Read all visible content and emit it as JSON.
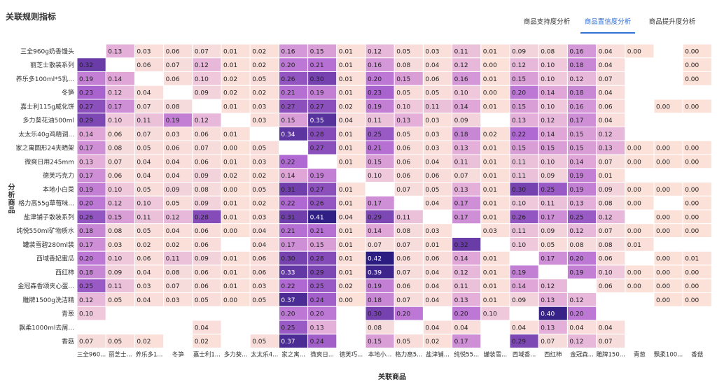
{
  "page": {
    "title": "关联规则指标"
  },
  "tabs": [
    {
      "label": "商品支持度分析",
      "active": false
    },
    {
      "label": "商品置信度分析",
      "active": true
    },
    {
      "label": "商品提升度分析",
      "active": false
    }
  ],
  "chart_data": {
    "type": "heatmap",
    "xlabel": "关联商品",
    "ylabel": "分析商品",
    "row_labels": [
      "三全960g奶香馒头",
      "丽芝士散装系列",
      "养乐多100ml*5乳...",
      "冬笋",
      "嘉士利115g威化饼",
      "多力葵花油500ml",
      "太太乐40g鸡精调...",
      "家之寓圆形24夹晒架",
      "微爽日用245mm",
      "德芙巧克力",
      "本地小白菜",
      "格力高55g草莓味...",
      "盐津铺子散装系列",
      "纯悦550ml矿物质水",
      "罐装雪碧280ml装",
      "西域香妃蜜瓜",
      "西红柿",
      "金冠森香颂夹心蛋...",
      "雕牌1500g洗洁精",
      "青葱",
      "飘柔1000ml去屑...",
      "香菇"
    ],
    "col_labels": [
      "三全960...",
      "丽芝士...",
      "养乐多1...",
      "冬笋",
      "嘉士利1...",
      "多力葵...",
      "太太乐4...",
      "家之寓...",
      "微爽日...",
      "德芙巧...",
      "本地小...",
      "格力高5...",
      "盐津铺...",
      "纯悦55...",
      "罐装雪...",
      "西域香...",
      "西红柿",
      "金冠森...",
      "雕牌150...",
      "青葱",
      "飘柔100...",
      "香菇"
    ],
    "values": [
      [
        "",
        "0.13",
        "0.03",
        "0.06",
        "0.07",
        "0.01",
        "0.02",
        "0.16",
        "0.15",
        "0.01",
        "0.12",
        "0.05",
        "0.03",
        "0.11",
        "0.01",
        "0.09",
        "0.08",
        "0.16",
        "0.04",
        "0.00",
        "",
        "0.00"
      ],
      [
        "0.32",
        "",
        "0.06",
        "0.07",
        "0.12",
        "0.01",
        "0.02",
        "0.20",
        "0.21",
        "0.01",
        "0.16",
        "0.08",
        "0.04",
        "0.12",
        "0.00",
        "0.12",
        "0.10",
        "0.18",
        "0.04",
        "",
        "",
        "0.00"
      ],
      [
        "0.19",
        "0.14",
        "",
        "0.06",
        "0.10",
        "0.02",
        "0.05",
        "0.26",
        "0.30",
        "0.01",
        "0.20",
        "0.15",
        "0.06",
        "0.16",
        "0.01",
        "0.15",
        "0.10",
        "0.12",
        "0.07",
        "",
        "",
        "0.00"
      ],
      [
        "0.23",
        "0.12",
        "0.04",
        "",
        "0.09",
        "0.02",
        "0.02",
        "0.21",
        "0.19",
        "0.01",
        "0.23",
        "0.05",
        "0.05",
        "0.10",
        "0.00",
        "0.20",
        "0.14",
        "0.18",
        "0.04",
        "",
        "",
        ""
      ],
      [
        "0.27",
        "0.17",
        "0.07",
        "0.08",
        "",
        "0.01",
        "0.03",
        "0.27",
        "0.27",
        "0.02",
        "0.19",
        "0.10",
        "0.11",
        "0.14",
        "0.01",
        "0.15",
        "0.10",
        "0.16",
        "0.06",
        "",
        "0.00",
        "0.00"
      ],
      [
        "0.29",
        "0.10",
        "0.11",
        "0.19",
        "0.12",
        "",
        "0.03",
        "0.15",
        "0.35",
        "0.04",
        "0.11",
        "0.13",
        "0.03",
        "0.09",
        "",
        "0.13",
        "0.12",
        "0.17",
        "0.04",
        "",
        "",
        ""
      ],
      [
        "0.14",
        "0.06",
        "0.07",
        "0.03",
        "0.06",
        "0.01",
        "",
        "0.34",
        "0.28",
        "0.01",
        "0.25",
        "0.05",
        "0.03",
        "0.18",
        "0.02",
        "0.22",
        "0.14",
        "0.15",
        "0.12",
        "",
        "",
        ""
      ],
      [
        "0.17",
        "0.08",
        "0.05",
        "0.06",
        "0.07",
        "0.00",
        "0.05",
        "",
        "0.27",
        "0.01",
        "0.21",
        "0.06",
        "0.03",
        "0.13",
        "0.01",
        "0.15",
        "0.15",
        "0.15",
        "0.13",
        "0.00",
        "0.00",
        "0.00"
      ],
      [
        "0.13",
        "0.07",
        "0.04",
        "0.04",
        "0.06",
        "0.01",
        "0.03",
        "0.22",
        "",
        "0.01",
        "0.15",
        "0.06",
        "0.04",
        "0.11",
        "0.01",
        "0.11",
        "0.10",
        "0.14",
        "0.07",
        "0.00",
        "0.00",
        "0.00"
      ],
      [
        "0.17",
        "0.06",
        "0.04",
        "0.04",
        "0.09",
        "0.02",
        "0.02",
        "0.14",
        "0.19",
        "",
        "0.10",
        "0.06",
        "0.06",
        "0.07",
        "0.01",
        "0.11",
        "0.09",
        "0.19",
        "0.01",
        "",
        "",
        ""
      ],
      [
        "0.19",
        "0.10",
        "0.05",
        "0.09",
        "0.08",
        "0.00",
        "0.05",
        "0.31",
        "0.27",
        "0.01",
        "",
        "0.07",
        "0.05",
        "0.13",
        "0.01",
        "0.30",
        "0.25",
        "0.19",
        "0.09",
        "0.00",
        "0.00",
        "0.00"
      ],
      [
        "0.20",
        "0.12",
        "0.10",
        "0.05",
        "0.09",
        "0.01",
        "0.02",
        "0.22",
        "0.26",
        "0.01",
        "0.17",
        "",
        "0.04",
        "0.17",
        "0.01",
        "0.10",
        "0.11",
        "0.13",
        "0.08",
        "0.00",
        "",
        "0.00"
      ],
      [
        "0.26",
        "0.15",
        "0.11",
        "0.12",
        "0.28",
        "0.01",
        "0.03",
        "0.31",
        "0.41",
        "0.04",
        "0.29",
        "0.11",
        "",
        "0.17",
        "0.01",
        "0.26",
        "0.17",
        "0.25",
        "0.12",
        "",
        "0.00",
        "0.00"
      ],
      [
        "0.18",
        "0.08",
        "0.05",
        "0.04",
        "0.06",
        "0.00",
        "0.04",
        "0.21",
        "0.21",
        "0.01",
        "0.14",
        "0.08",
        "0.03",
        "",
        "0.03",
        "0.11",
        "0.09",
        "0.12",
        "0.07",
        "0.00",
        "0.00",
        "0.00"
      ],
      [
        "0.17",
        "0.03",
        "0.02",
        "0.02",
        "0.06",
        "",
        "0.04",
        "0.17",
        "0.15",
        "0.01",
        "0.07",
        "0.07",
        "0.01",
        "0.32",
        "",
        "0.10",
        "0.05",
        "0.08",
        "0.08",
        "0.01",
        "",
        ""
      ],
      [
        "0.20",
        "0.10",
        "0.06",
        "0.11",
        "0.09",
        "0.01",
        "0.06",
        "0.30",
        "0.28",
        "0.01",
        "0.42",
        "0.06",
        "0.06",
        "0.14",
        "0.01",
        "",
        "0.17",
        "0.20",
        "0.06",
        "",
        "0.00",
        "0.01"
      ],
      [
        "0.18",
        "0.09",
        "0.04",
        "0.08",
        "0.06",
        "0.01",
        "0.06",
        "0.33",
        "0.29",
        "0.01",
        "0.39",
        "0.07",
        "0.04",
        "0.12",
        "0.01",
        "0.19",
        "",
        "0.19",
        "0.10",
        "0.00",
        "0.00",
        "0.00"
      ],
      [
        "0.25",
        "0.11",
        "0.03",
        "0.07",
        "0.06",
        "0.01",
        "0.03",
        "0.22",
        "0.25",
        "0.02",
        "0.19",
        "0.06",
        "0.04",
        "0.11",
        "0.01",
        "0.14",
        "0.12",
        "",
        "0.06",
        "0.00",
        "0.00",
        "0.00"
      ],
      [
        "0.12",
        "0.05",
        "0.04",
        "0.03",
        "0.05",
        "0.00",
        "0.05",
        "0.37",
        "0.24",
        "0.00",
        "0.18",
        "0.07",
        "0.04",
        "0.13",
        "0.01",
        "0.09",
        "0.13",
        "0.12",
        "",
        "",
        "0.00",
        "0.00"
      ],
      [
        "0.10",
        "",
        "",
        "",
        "",
        "",
        "",
        "0.20",
        "0.20",
        "",
        "0.30",
        "0.20",
        "",
        "0.20",
        "0.10",
        "",
        "0.40",
        "0.20",
        "",
        "",
        "",
        ""
      ],
      [
        "",
        "",
        "",
        "",
        "0.04",
        "",
        "",
        "0.25",
        "0.13",
        "",
        "0.08",
        "",
        "0.04",
        "0.04",
        "",
        "0.04",
        "0.13",
        "0.04",
        "0.04",
        "",
        "",
        ""
      ],
      [
        "0.07",
        "0.05",
        "0.02",
        "",
        "0.02",
        "",
        "0.05",
        "0.37",
        "0.24",
        "",
        "0.15",
        "0.05",
        "0.02",
        "0.17",
        "",
        "0.29",
        "0.07",
        "0.12",
        "0.07",
        "",
        "",
        ""
      ]
    ]
  }
}
